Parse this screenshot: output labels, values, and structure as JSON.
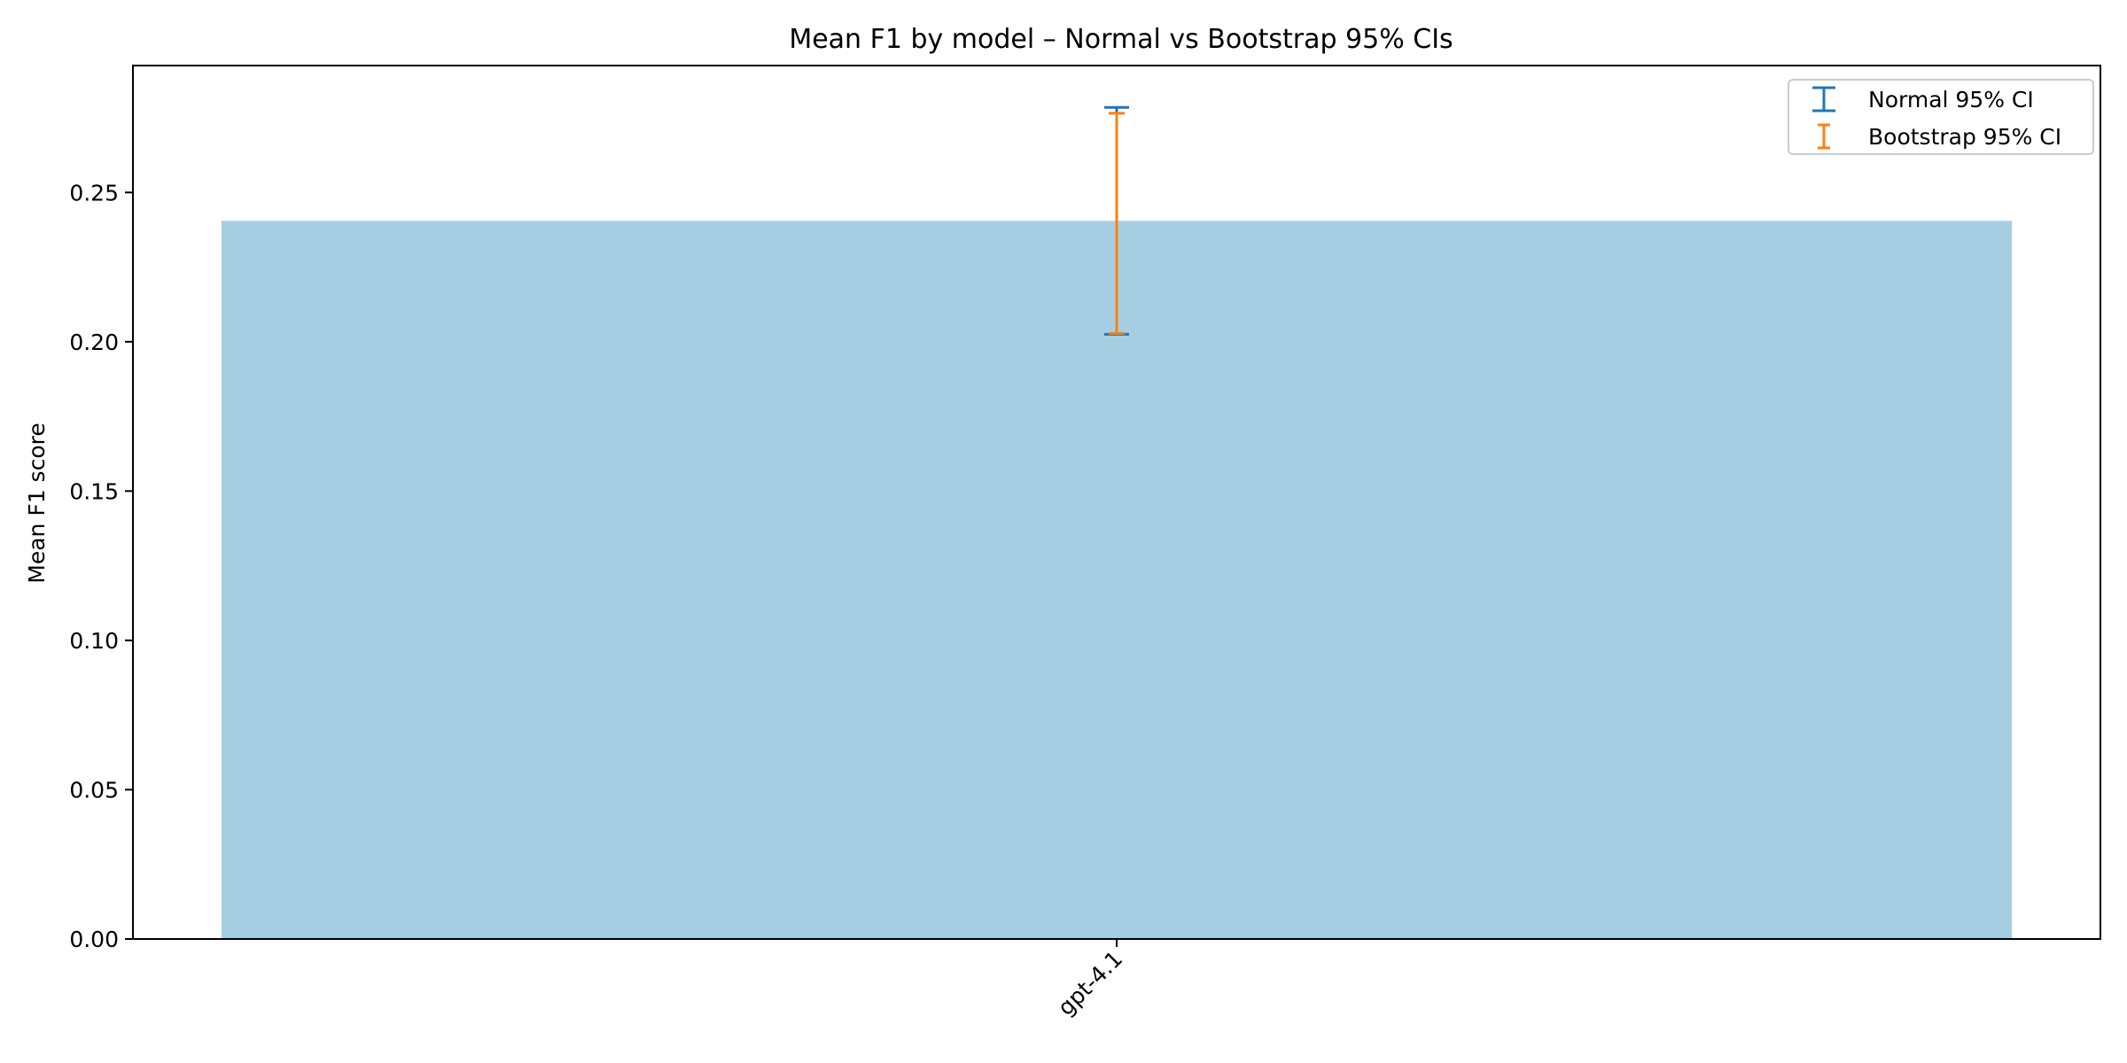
{
  "chart_data": {
    "type": "bar",
    "title": "Mean F1 by model – Normal vs Bootstrap 95% CIs",
    "xlabel": "",
    "ylabel": "Mean F1 score",
    "categories": [
      "gpt-4.1"
    ],
    "values": [
      0.2405
    ],
    "bar_color": "#a6cee3",
    "ylim": [
      0,
      0.2925
    ],
    "yticks": [
      0.0,
      0.05,
      0.1,
      0.15,
      0.2,
      0.25
    ],
    "ytick_labels": [
      "0.00",
      "0.05",
      "0.10",
      "0.15",
      "0.20",
      "0.25"
    ],
    "grid": false,
    "error_bars": [
      {
        "name": "Normal 95% CI",
        "color": "#1f77b4",
        "lower": [
          0.2025
        ],
        "upper": [
          0.2785
        ]
      },
      {
        "name": "Bootstrap 95% CI",
        "color": "#ff7f0e",
        "lower": [
          0.2028
        ],
        "upper": [
          0.2765
        ]
      }
    ],
    "legend": {
      "position": "top-right",
      "entries": [
        "Normal 95% CI",
        "Bootstrap 95% CI"
      ]
    }
  }
}
